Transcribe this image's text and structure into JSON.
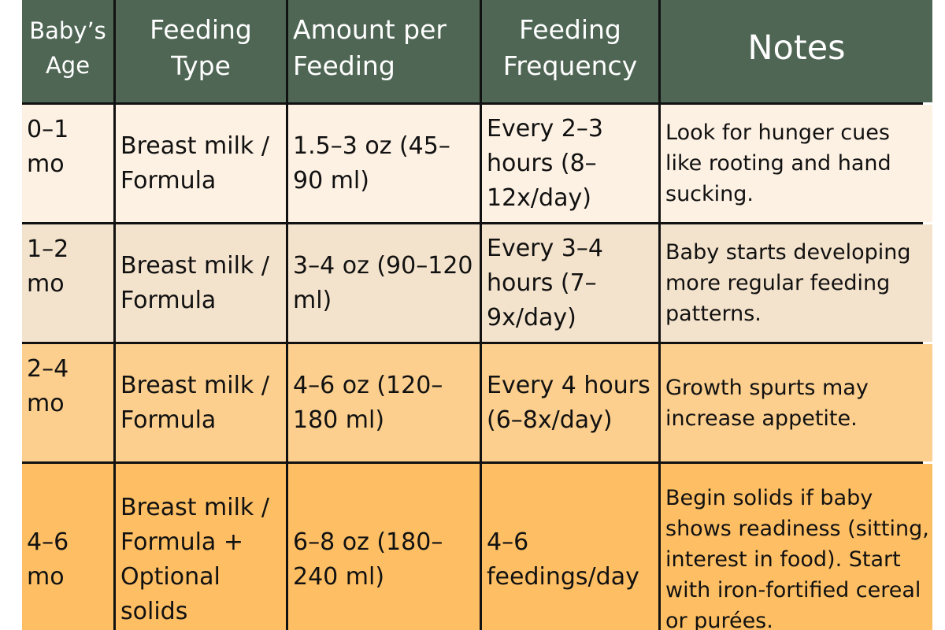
{
  "table": {
    "headers": [
      "Baby’s Age",
      "Feeding Type",
      "Amount per Feeding",
      "Feeding Frequency",
      "Notes"
    ],
    "rows": [
      [
        "0–1 mo",
        "Breast milk / Formula",
        "1.5–3 oz (45–90 ml)",
        "Every 2–3 hours (8–12x/day)",
        "Look for hunger cues like rooting and hand sucking."
      ],
      [
        "1–2 mo",
        "Breast milk / Formula",
        "3–4 oz (90–120 ml)",
        "Every 3–4 hours (7–9x/day)",
        "Baby starts developing more regular feeding patterns."
      ],
      [
        "2–4 mo",
        "Breast milk / Formula",
        "4–6 oz (120–180 ml)",
        "Every 4 hours (6–8x/day)",
        "Growth spurts may increase appetite."
      ],
      [
        "4–6 mo",
        "Breast milk / Formula + Optional solids",
        "6–8 oz (180–240 ml)",
        "4–6 feedings/day",
        "Begin solids if baby shows readiness (sitting, interest in food). Start with iron-fortified cereal or purées."
      ]
    ]
  },
  "colors": {
    "header_bg": "#4f6654",
    "header_text": "#ffffff",
    "row_bg": [
      "#fdf1e3",
      "#f4e3cc",
      "#fccf8e",
      "#febf64"
    ],
    "grid_lines": "#111111"
  }
}
